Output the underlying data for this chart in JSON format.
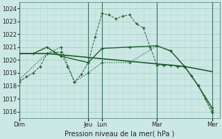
{
  "background_color": "#cce8e4",
  "grid_color_major": "#a8ccc8",
  "grid_color_minor": "#b8d8d4",
  "line_color": "#1a5c2a",
  "title": "Pression niveau de la mer( hPa )",
  "ylabel_ticks": [
    1016,
    1017,
    1018,
    1019,
    1020,
    1021,
    1022,
    1023,
    1024
  ],
  "ylim": [
    1015.5,
    1024.5
  ],
  "day_labels": [
    "Dim",
    "Jeu",
    "Lun",
    "Mar",
    "Mer"
  ],
  "day_x": [
    0,
    60,
    72,
    120,
    168
  ],
  "xlim": [
    0,
    175
  ],
  "series": [
    {
      "x": [
        0,
        6,
        12,
        18,
        24,
        30,
        36,
        42,
        48,
        54,
        60,
        66,
        72,
        78,
        84,
        90,
        96,
        102,
        108,
        114,
        120,
        126,
        132,
        138,
        144,
        150,
        156,
        162,
        168
      ],
      "y": [
        1018.3,
        1018.7,
        1019.0,
        1019.5,
        1020.5,
        1020.6,
        1020.6,
        1019.5,
        1018.3,
        1018.9,
        1019.8,
        1021.8,
        1023.6,
        1023.5,
        1023.2,
        1023.4,
        1023.5,
        1022.8,
        1022.5,
        1021.0,
        1019.6,
        1019.6,
        1019.6,
        1019.5,
        1019.5,
        1018.8,
        1018.0,
        1017.0,
        1015.9
      ],
      "linestyle": "--",
      "linewidth": 0.7,
      "marker": true
    },
    {
      "x": [
        0,
        12,
        24,
        36,
        48,
        60,
        72,
        84,
        96,
        108,
        120,
        132,
        144,
        156,
        168
      ],
      "y": [
        1020.5,
        1020.5,
        1020.5,
        1020.4,
        1020.3,
        1020.2,
        1020.1,
        1020.0,
        1019.9,
        1019.8,
        1019.7,
        1019.6,
        1019.5,
        1019.3,
        1019.1
      ],
      "linestyle": "-",
      "linewidth": 1.2,
      "marker": false
    },
    {
      "x": [
        0,
        12,
        24,
        36,
        60,
        72,
        96,
        120,
        132,
        144,
        156,
        168
      ],
      "y": [
        1020.5,
        1020.5,
        1021.0,
        1020.3,
        1019.8,
        1020.9,
        1021.0,
        1021.1,
        1020.7,
        1019.5,
        1018.0,
        1016.3
      ],
      "linestyle": "-",
      "linewidth": 1.0,
      "marker": true
    },
    {
      "x": [
        0,
        24,
        36,
        48,
        60,
        72,
        96,
        120,
        132,
        144,
        156,
        168
      ],
      "y": [
        1018.5,
        1020.5,
        1021.0,
        1018.3,
        1019.0,
        1019.8,
        1019.8,
        1021.1,
        1020.7,
        1019.5,
        1018.0,
        1016.1
      ],
      "linestyle": ":",
      "linewidth": 0.9,
      "marker": true
    }
  ]
}
